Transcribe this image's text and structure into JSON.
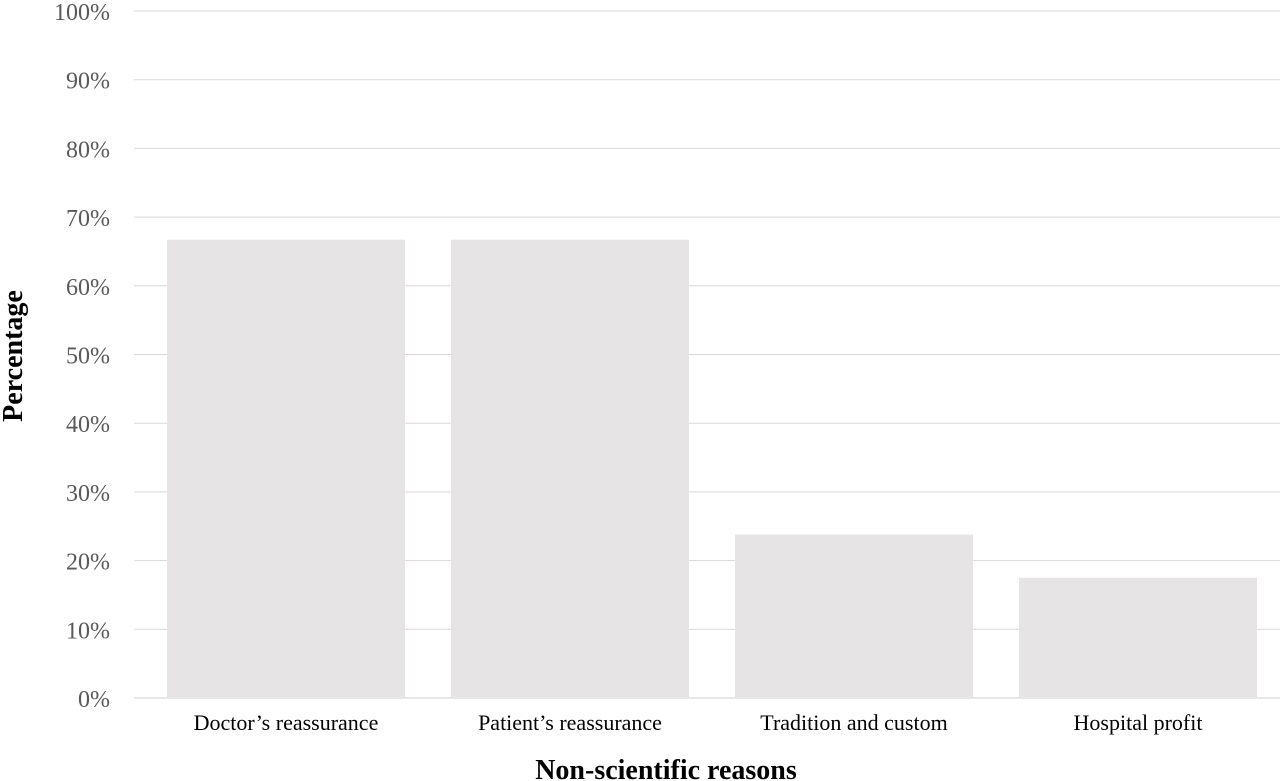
{
  "chart_data": {
    "type": "bar",
    "categories": [
      "Doctor’s reassurance",
      "Patient’s reassurance",
      "Tradition and custom",
      "Hospital profit"
    ],
    "values": [
      66.7,
      66.7,
      23.8,
      17.5
    ],
    "xlabel": "Non-scientific reasons",
    "ylabel": "Percentage",
    "ylim": [
      0,
      100
    ],
    "yticks": [
      "0%",
      "10%",
      "20%",
      "30%",
      "40%",
      "50%",
      "60%",
      "70%",
      "80%",
      "90%",
      "100%"
    ],
    "bar_color": "#e7e4e5",
    "grid": true,
    "legend": "none"
  }
}
